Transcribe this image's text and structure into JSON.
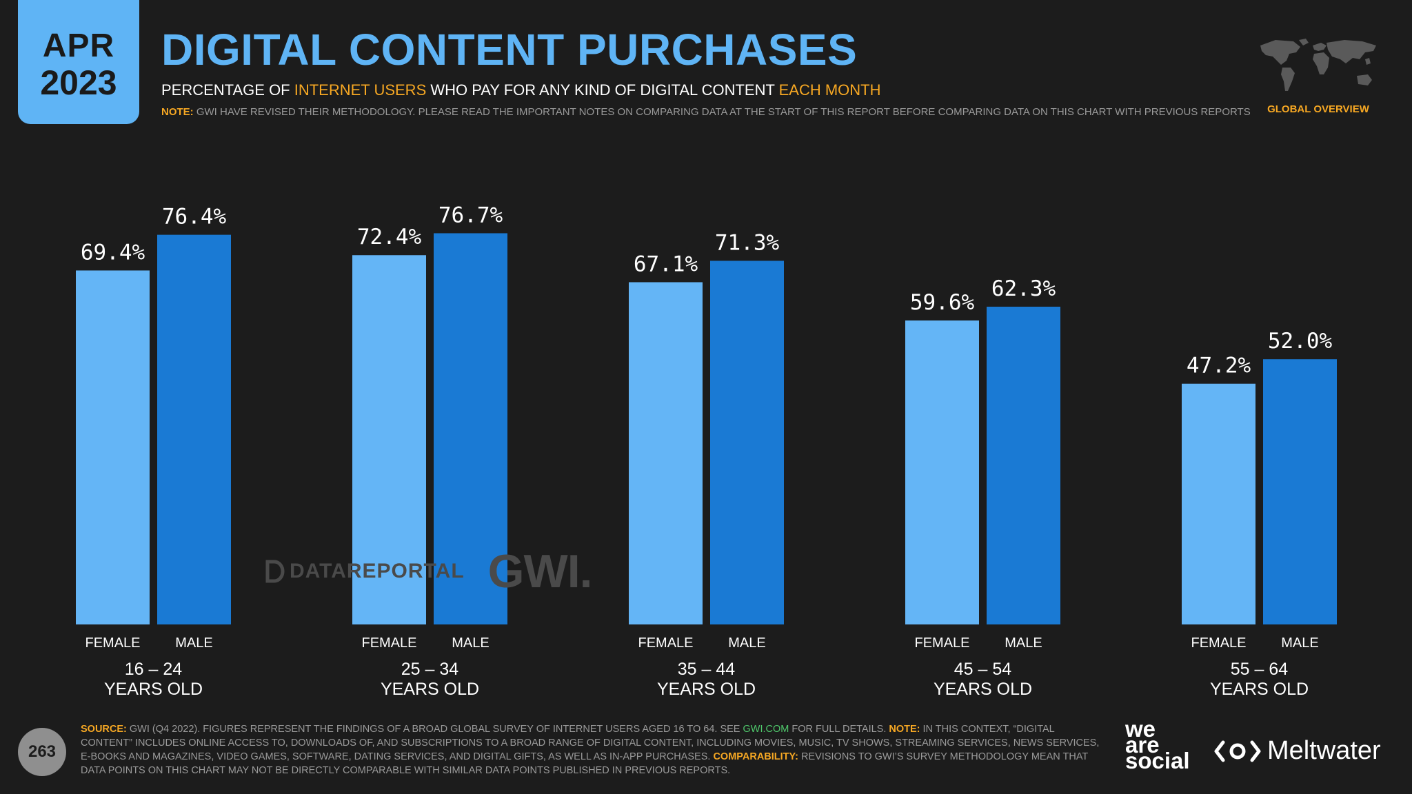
{
  "header": {
    "date_month": "APR",
    "date_year": "2023",
    "title": "DIGITAL CONTENT PURCHASES",
    "subtitle_parts": [
      "PERCENTAGE OF ",
      "INTERNET USERS",
      " WHO PAY FOR ANY KIND OF DIGITAL CONTENT ",
      "EACH MONTH"
    ],
    "note_label": "NOTE:",
    "note_text": " GWI HAVE REVISED THEIR METHODOLOGY. PLEASE READ THE IMPORTANT NOTES ON COMPARING DATA AT THE START OF THIS REPORT BEFORE COMPARING DATA ON THIS CHART WITH PREVIOUS REPORTS",
    "region_label": "GLOBAL OVERVIEW"
  },
  "chart_data": {
    "type": "bar",
    "title": "DIGITAL CONTENT PURCHASES",
    "groups": [
      {
        "line1": "16 – 24",
        "line2": "YEARS OLD",
        "female": 69.4,
        "male": 76.4,
        "female_label": "69.4%",
        "male_label": "76.4%"
      },
      {
        "line1": "25 – 34",
        "line2": "YEARS OLD",
        "female": 72.4,
        "male": 76.7,
        "female_label": "72.4%",
        "male_label": "76.7%"
      },
      {
        "line1": "35 – 44",
        "line2": "YEARS OLD",
        "female": 67.1,
        "male": 71.3,
        "female_label": "67.1%",
        "male_label": "71.3%"
      },
      {
        "line1": "45 – 54",
        "line2": "YEARS OLD",
        "female": 59.6,
        "male": 62.3,
        "female_label": "59.6%",
        "male_label": "62.3%"
      },
      {
        "line1": "55 – 64",
        "line2": "YEARS OLD",
        "female": 47.2,
        "male": 52.0,
        "female_label": "47.2%",
        "male_label": "52.0%"
      }
    ],
    "series": [
      {
        "name": "FEMALE",
        "color": "#64b5f6"
      },
      {
        "name": "MALE",
        "color": "#1a7ad4"
      }
    ],
    "ylim": [
      0,
      100
    ]
  },
  "watermark": {
    "brand": "DATAREPORTAL",
    "gwi": "GWI."
  },
  "footer": {
    "page_number": "263",
    "source_label": "SOURCE:",
    "source_text_1": " GWI (Q4 2022). FIGURES REPRESENT THE FINDINGS OF A BROAD GLOBAL SURVEY OF INTERNET USERS AGED 16 TO 64. SEE ",
    "source_link": "GWI.COM",
    "source_text_2": " FOR FULL DETAILS. ",
    "note_label": "NOTE:",
    "note_text": " IN THIS CONTEXT, “DIGITAL CONTENT” INCLUDES ONLINE ACCESS TO, DOWNLOADS OF, AND SUBSCRIPTIONS TO A BROAD RANGE OF DIGITAL CONTENT, INCLUDING MOVIES, MUSIC, TV SHOWS, STREAMING SERVICES, NEWS SERVICES, E-BOOKS AND MAGAZINES, VIDEO GAMES, SOFTWARE, DATING SERVICES, AND DIGITAL GIFTS, AS WELL AS IN-APP PURCHASES. ",
    "comparability_label": "COMPARABILITY:",
    "comparability_text": " REVISIONS TO GWI’S SURVEY METHODOLOGY MEAN THAT DATA POINTS ON THIS CHART MAY NOT BE DIRECTLY COMPARABLE WITH SIMILAR DATA POINTS PUBLISHED IN PREVIOUS REPORTS.",
    "logo_we": "we",
    "logo_are": "are",
    "logo_social": "social",
    "logo_meltwater": "Meltwater"
  }
}
